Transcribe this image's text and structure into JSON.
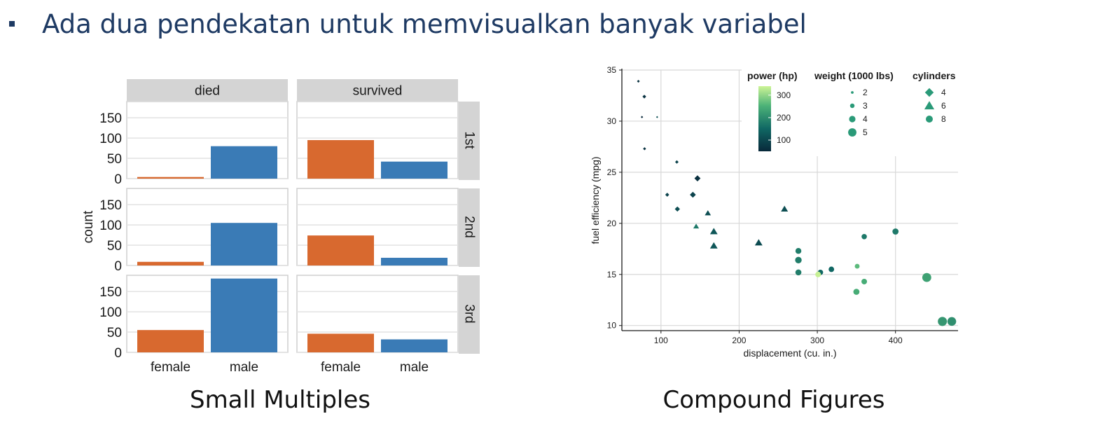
{
  "slide": {
    "heading": "Ada dua pendekatan untuk memvisualkan banyak variabel",
    "left_caption": "Small Multiples",
    "right_caption": "Compound Figures"
  },
  "colors": {
    "heading": "#1e3a63",
    "female": "#d8692f",
    "male": "#3a7bb6",
    "strip": "#d4d4d4",
    "grid": "#e2e2e2"
  },
  "chart_data": [
    {
      "type": "bar",
      "ylabel": "count",
      "facet_columns": [
        "died",
        "survived"
      ],
      "facet_rows": [
        "1st",
        "2nd",
        "3rd"
      ],
      "categories": [
        "female",
        "male"
      ],
      "yticks": [
        0,
        50,
        100,
        150
      ],
      "ylim": [
        0,
        190
      ],
      "grid": true,
      "panels": [
        {
          "column": "died",
          "row": "1st",
          "values": [
            4,
            80
          ]
        },
        {
          "column": "survived",
          "row": "1st",
          "values": [
            95,
            42
          ]
        },
        {
          "column": "died",
          "row": "2nd",
          "values": [
            9,
            105
          ]
        },
        {
          "column": "survived",
          "row": "2nd",
          "values": [
            74,
            19
          ]
        },
        {
          "column": "died",
          "row": "3rd",
          "values": [
            55,
            182
          ]
        },
        {
          "column": "survived",
          "row": "3rd",
          "values": [
            46,
            32
          ]
        }
      ]
    },
    {
      "type": "scatter",
      "xlabel": "displacement (cu. in.)",
      "ylabel": "fuel efficiency (mpg)",
      "xlim": [
        50,
        480
      ],
      "ylim": [
        9.5,
        35
      ],
      "xticks": [
        100,
        200,
        300,
        400
      ],
      "yticks": [
        10,
        15,
        20,
        25,
        30,
        35
      ],
      "grid": true,
      "legend": {
        "color_title": "power (hp)",
        "color_ticks": [
          100,
          200,
          300
        ],
        "color_range": [
          50,
          340
        ],
        "size_title": "weight (1000 lbs)",
        "size_values": [
          2,
          3,
          4,
          5
        ],
        "shape_title": "cylinders",
        "shape_values": [
          {
            "label": "4",
            "shape": "diamond"
          },
          {
            "label": "6",
            "shape": "triangle"
          },
          {
            "label": "8",
            "shape": "circle"
          }
        ]
      },
      "points": [
        {
          "x": 71.1,
          "y": 33.9,
          "hp": 65,
          "wt": 1.8,
          "cyl": 4
        },
        {
          "x": 78.7,
          "y": 32.4,
          "hp": 66,
          "wt": 2.2,
          "cyl": 4
        },
        {
          "x": 75.7,
          "y": 30.4,
          "hp": 52,
          "wt": 1.6,
          "cyl": 4
        },
        {
          "x": 95.1,
          "y": 30.4,
          "hp": 113,
          "wt": 1.5,
          "cyl": 4
        },
        {
          "x": 79.0,
          "y": 27.3,
          "hp": 66,
          "wt": 1.9,
          "cyl": 4
        },
        {
          "x": 120.3,
          "y": 26.0,
          "hp": 91,
          "wt": 2.1,
          "cyl": 4
        },
        {
          "x": 108.0,
          "y": 22.8,
          "hp": 93,
          "wt": 2.3,
          "cyl": 4
        },
        {
          "x": 146.7,
          "y": 24.4,
          "hp": 62,
          "wt": 3.2,
          "cyl": 4
        },
        {
          "x": 140.8,
          "y": 22.8,
          "hp": 95,
          "wt": 3.15,
          "cyl": 4
        },
        {
          "x": 121.0,
          "y": 21.4,
          "hp": 109,
          "wt": 2.8,
          "cyl": 4
        },
        {
          "x": 160.0,
          "y": 21.0,
          "hp": 110,
          "wt": 2.62,
          "cyl": 6
        },
        {
          "x": 160.0,
          "y": 21.0,
          "hp": 110,
          "wt": 2.88,
          "cyl": 6
        },
        {
          "x": 258.0,
          "y": 21.4,
          "hp": 110,
          "wt": 3.22,
          "cyl": 6
        },
        {
          "x": 225.0,
          "y": 18.1,
          "hp": 105,
          "wt": 3.46,
          "cyl": 6
        },
        {
          "x": 167.6,
          "y": 19.2,
          "hp": 123,
          "wt": 3.44,
          "cyl": 6
        },
        {
          "x": 167.6,
          "y": 17.8,
          "hp": 123,
          "wt": 3.44,
          "cyl": 6
        },
        {
          "x": 145.0,
          "y": 19.7,
          "hp": 175,
          "wt": 2.77,
          "cyl": 6
        },
        {
          "x": 360.0,
          "y": 18.7,
          "hp": 175,
          "wt": 3.44,
          "cyl": 8
        },
        {
          "x": 400.0,
          "y": 19.2,
          "hp": 175,
          "wt": 3.85,
          "cyl": 8
        },
        {
          "x": 275.8,
          "y": 17.3,
          "hp": 180,
          "wt": 3.73,
          "cyl": 8
        },
        {
          "x": 275.8,
          "y": 16.4,
          "hp": 180,
          "wt": 4.07,
          "cyl": 8
        },
        {
          "x": 275.8,
          "y": 15.2,
          "hp": 180,
          "wt": 3.78,
          "cyl": 8
        },
        {
          "x": 304.0,
          "y": 15.2,
          "hp": 150,
          "wt": 3.44,
          "cyl": 8
        },
        {
          "x": 318.0,
          "y": 15.5,
          "hp": 150,
          "wt": 3.52,
          "cyl": 8
        },
        {
          "x": 301.0,
          "y": 15.0,
          "hp": 335,
          "wt": 3.57,
          "cyl": 8
        },
        {
          "x": 351.0,
          "y": 15.8,
          "hp": 264,
          "wt": 3.17,
          "cyl": 8
        },
        {
          "x": 350.0,
          "y": 13.3,
          "hp": 245,
          "wt": 3.84,
          "cyl": 8
        },
        {
          "x": 360.0,
          "y": 14.3,
          "hp": 245,
          "wt": 3.57,
          "cyl": 8
        },
        {
          "x": 440.0,
          "y": 14.7,
          "hp": 230,
          "wt": 5.35,
          "cyl": 8
        },
        {
          "x": 460.0,
          "y": 10.4,
          "hp": 215,
          "wt": 5.42,
          "cyl": 8
        },
        {
          "x": 472.0,
          "y": 10.4,
          "hp": 205,
          "wt": 5.25,
          "cyl": 8
        }
      ]
    }
  ]
}
